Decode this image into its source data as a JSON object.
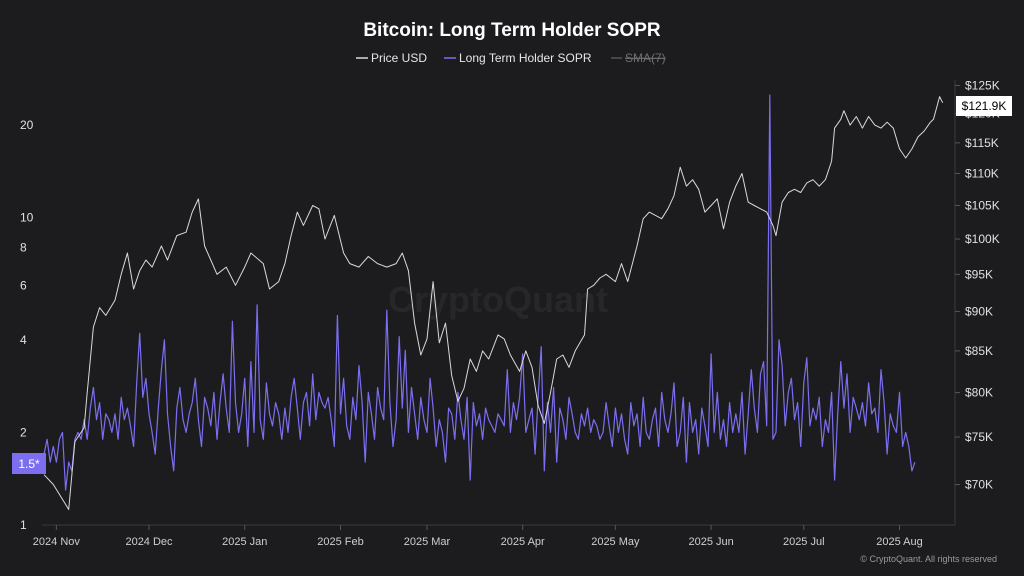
{
  "chart_data": {
    "type": "line",
    "title": "Bitcoin: Long Term Holder SOPR",
    "legend": [
      {
        "name": "Price USD",
        "color": "#d9d9d9",
        "disabled": false
      },
      {
        "name": "Long Term Holder SOPR",
        "color": "#7b6ff0",
        "disabled": false
      },
      {
        "name": "SMA(7)",
        "color": "#6b6b6b",
        "disabled": true
      }
    ],
    "legend_position": "top-center",
    "x_ticks": [
      "2024 Nov",
      "2024 Dec",
      "2025 Jan",
      "2025 Feb",
      "2025 Mar",
      "2025 Apr",
      "2025 May",
      "2025 Jun",
      "2025 Jul",
      "2025 Aug"
    ],
    "x_range": [
      "2024-10-28",
      "2025-08-18"
    ],
    "left_axis": {
      "scale": "log",
      "range": [
        1,
        28
      ],
      "ticks": [
        1,
        2,
        4,
        6,
        8,
        10,
        20
      ],
      "series": "Long Term Holder SOPR"
    },
    "right_axis": {
      "scale": "log",
      "range": [
        66000,
        126000
      ],
      "ticks": [
        "$70K",
        "$75K",
        "$80K",
        "$85K",
        "$90K",
        "$95K",
        "$100K",
        "$105K",
        "$110K",
        "$115K",
        "$120K",
        "$125K"
      ],
      "tick_values": [
        70000,
        75000,
        80000,
        85000,
        90000,
        95000,
        100000,
        105000,
        110000,
        115000,
        120000,
        125000
      ],
      "series": "Price USD"
    },
    "current_price_label": "$121.9K",
    "current_price_value": 121900,
    "current_sopr_label": "1.5*",
    "current_sopr_value": 1.5,
    "watermark": "CryptoQuant",
    "copyright": "© CryptoQuant. All rights reserved",
    "grid": false,
    "series": [
      {
        "name": "Price USD",
        "color": "#d9d9d9",
        "points": [
          [
            "2024-10-28",
            71000
          ],
          [
            "2024-10-31",
            70000
          ],
          [
            "2024-11-03",
            68500
          ],
          [
            "2024-11-05",
            67500
          ],
          [
            "2024-11-07",
            74500
          ],
          [
            "2024-11-10",
            76000
          ],
          [
            "2024-11-11",
            80000
          ],
          [
            "2024-11-13",
            88000
          ],
          [
            "2024-11-15",
            90500
          ],
          [
            "2024-11-17",
            89500
          ],
          [
            "2024-11-20",
            91500
          ],
          [
            "2024-11-22",
            95000
          ],
          [
            "2024-11-24",
            98000
          ],
          [
            "2024-11-26",
            93000
          ],
          [
            "2024-11-28",
            95500
          ],
          [
            "2024-11-30",
            97000
          ],
          [
            "2024-12-02",
            96000
          ],
          [
            "2024-12-05",
            99000
          ],
          [
            "2024-12-07",
            97000
          ],
          [
            "2024-12-10",
            100500
          ],
          [
            "2024-12-13",
            101000
          ],
          [
            "2024-12-15",
            104000
          ],
          [
            "2024-12-17",
            106000
          ],
          [
            "2024-12-19",
            99000
          ],
          [
            "2024-12-21",
            97000
          ],
          [
            "2024-12-23",
            95000
          ],
          [
            "2024-12-26",
            96000
          ],
          [
            "2024-12-29",
            93500
          ],
          [
            "2025-01-01",
            96000
          ],
          [
            "2025-01-03",
            98000
          ],
          [
            "2025-01-07",
            96500
          ],
          [
            "2025-01-09",
            93000
          ],
          [
            "2025-01-12",
            94000
          ],
          [
            "2025-01-14",
            96500
          ],
          [
            "2025-01-16",
            100500
          ],
          [
            "2025-01-18",
            104000
          ],
          [
            "2025-01-20",
            102000
          ],
          [
            "2025-01-23",
            105000
          ],
          [
            "2025-01-25",
            104500
          ],
          [
            "2025-01-27",
            100000
          ],
          [
            "2025-01-30",
            103500
          ],
          [
            "2025-02-02",
            98000
          ],
          [
            "2025-02-04",
            96500
          ],
          [
            "2025-02-07",
            96000
          ],
          [
            "2025-02-10",
            97500
          ],
          [
            "2025-02-13",
            96500
          ],
          [
            "2025-02-16",
            96000
          ],
          [
            "2025-02-19",
            96500
          ],
          [
            "2025-02-21",
            98000
          ],
          [
            "2025-02-23",
            95500
          ],
          [
            "2025-02-25",
            88500
          ],
          [
            "2025-02-27",
            84500
          ],
          [
            "2025-03-01",
            86500
          ],
          [
            "2025-03-03",
            94000
          ],
          [
            "2025-03-05",
            86000
          ],
          [
            "2025-03-07",
            88500
          ],
          [
            "2025-03-09",
            82000
          ],
          [
            "2025-03-11",
            79000
          ],
          [
            "2025-03-13",
            80500
          ],
          [
            "2025-03-15",
            84000
          ],
          [
            "2025-03-17",
            82500
          ],
          [
            "2025-03-19",
            85000
          ],
          [
            "2025-03-21",
            84000
          ],
          [
            "2025-03-24",
            87000
          ],
          [
            "2025-03-26",
            86500
          ],
          [
            "2025-03-28",
            84500
          ],
          [
            "2025-03-31",
            82500
          ],
          [
            "2025-04-02",
            85000
          ],
          [
            "2025-04-04",
            83000
          ],
          [
            "2025-04-06",
            78500
          ],
          [
            "2025-04-08",
            76500
          ],
          [
            "2025-04-10",
            80000
          ],
          [
            "2025-04-12",
            84000
          ],
          [
            "2025-04-14",
            84500
          ],
          [
            "2025-04-16",
            83000
          ],
          [
            "2025-04-18",
            85000
          ],
          [
            "2025-04-21",
            87000
          ],
          [
            "2025-04-22",
            93000
          ],
          [
            "2025-04-24",
            93500
          ],
          [
            "2025-04-26",
            94500
          ],
          [
            "2025-04-28",
            95000
          ],
          [
            "2025-05-01",
            94000
          ],
          [
            "2025-05-03",
            96500
          ],
          [
            "2025-05-05",
            94000
          ],
          [
            "2025-05-08",
            99000
          ],
          [
            "2025-05-10",
            103000
          ],
          [
            "2025-05-12",
            104000
          ],
          [
            "2025-05-14",
            103500
          ],
          [
            "2025-05-16",
            103000
          ],
          [
            "2025-05-18",
            104500
          ],
          [
            "2025-05-20",
            106500
          ],
          [
            "2025-05-22",
            111000
          ],
          [
            "2025-05-24",
            108000
          ],
          [
            "2025-05-26",
            109000
          ],
          [
            "2025-05-28",
            107500
          ],
          [
            "2025-05-30",
            104000
          ],
          [
            "2025-06-01",
            105000
          ],
          [
            "2025-06-03",
            106000
          ],
          [
            "2025-06-05",
            101500
          ],
          [
            "2025-06-07",
            105500
          ],
          [
            "2025-06-09",
            108000
          ],
          [
            "2025-06-11",
            110000
          ],
          [
            "2025-06-13",
            105500
          ],
          [
            "2025-06-15",
            105000
          ],
          [
            "2025-06-17",
            104500
          ],
          [
            "2025-06-19",
            104000
          ],
          [
            "2025-06-21",
            102000
          ],
          [
            "2025-06-22",
            100500
          ],
          [
            "2025-06-24",
            105500
          ],
          [
            "2025-06-26",
            107000
          ],
          [
            "2025-06-28",
            107500
          ],
          [
            "2025-06-30",
            107000
          ],
          [
            "2025-07-02",
            108500
          ],
          [
            "2025-07-04",
            109000
          ],
          [
            "2025-07-06",
            108000
          ],
          [
            "2025-07-08",
            109000
          ],
          [
            "2025-07-10",
            112000
          ],
          [
            "2025-07-11",
            117500
          ],
          [
            "2025-07-13",
            119000
          ],
          [
            "2025-07-14",
            120500
          ],
          [
            "2025-07-16",
            118000
          ],
          [
            "2025-07-18",
            119500
          ],
          [
            "2025-07-20",
            117500
          ],
          [
            "2025-07-22",
            119500
          ],
          [
            "2025-07-24",
            118000
          ],
          [
            "2025-07-26",
            117500
          ],
          [
            "2025-07-28",
            118500
          ],
          [
            "2025-07-30",
            117500
          ],
          [
            "2025-08-01",
            114000
          ],
          [
            "2025-08-03",
            112500
          ],
          [
            "2025-08-05",
            114000
          ],
          [
            "2025-08-07",
            116000
          ],
          [
            "2025-08-09",
            117000
          ],
          [
            "2025-08-11",
            118500
          ],
          [
            "2025-08-12",
            119000
          ],
          [
            "2025-08-14",
            123000
          ],
          [
            "2025-08-15",
            121900
          ]
        ]
      },
      {
        "name": "Long Term Holder SOPR",
        "color": "#7b6ff0",
        "values_start": "2024-10-28",
        "values_step_days": 1,
        "values": [
          1.7,
          1.9,
          1.6,
          1.8,
          1.6,
          1.9,
          2.0,
          1.3,
          1.6,
          1.5,
          1.9,
          2.0,
          1.9,
          2.2,
          1.9,
          2.4,
          2.8,
          2.2,
          2.5,
          1.9,
          2.3,
          2.2,
          2.0,
          2.3,
          1.9,
          2.6,
          2.2,
          2.4,
          2.1,
          1.8,
          2.9,
          4.2,
          2.6,
          3.0,
          2.3,
          2.0,
          1.7,
          2.4,
          3.2,
          4.0,
          2.3,
          1.8,
          1.5,
          2.4,
          2.8,
          2.2,
          2.0,
          2.3,
          2.5,
          3.0,
          2.2,
          1.8,
          2.6,
          2.4,
          2.1,
          2.7,
          1.9,
          2.5,
          3.1,
          2.4,
          2.0,
          4.6,
          2.5,
          2.0,
          2.3,
          3.0,
          1.8,
          3.4,
          2.0,
          5.2,
          2.2,
          1.9,
          2.9,
          2.3,
          2.1,
          2.5,
          2.3,
          1.9,
          2.4,
          2.0,
          2.6,
          3.0,
          2.4,
          1.9,
          2.5,
          2.7,
          2.1,
          3.1,
          2.2,
          2.7,
          2.5,
          2.4,
          2.6,
          2.2,
          1.8,
          4.8,
          2.3,
          3.0,
          2.1,
          1.9,
          2.6,
          2.2,
          3.3,
          2.5,
          1.6,
          2.7,
          2.3,
          1.9,
          2.8,
          2.4,
          2.2,
          5.0,
          2.5,
          1.8,
          2.2,
          4.1,
          2.4,
          3.7,
          2.0,
          2.8,
          2.3,
          1.9,
          2.6,
          2.2,
          2.0,
          3.0,
          2.4,
          1.8,
          2.2,
          2.0,
          1.6,
          2.4,
          2.3,
          1.9,
          2.7,
          2.2,
          1.9,
          2.6,
          1.4,
          2.5,
          2.1,
          2.3,
          1.9,
          2.4,
          2.2,
          2.1,
          2.0,
          2.3,
          2.2,
          2.1,
          3.2,
          2.0,
          2.5,
          2.2,
          2.6,
          3.6,
          2.0,
          2.2,
          2.4,
          1.7,
          2.6,
          3.8,
          1.5,
          2.5,
          2.0,
          2.8,
          1.6,
          2.4,
          2.2,
          1.9,
          2.6,
          2.3,
          2.0,
          1.9,
          2.3,
          2.1,
          2.4,
          2.0,
          2.2,
          2.1,
          1.9,
          2.0,
          2.5,
          2.1,
          1.8,
          2.4,
          2.0,
          2.3,
          1.9,
          1.7,
          2.5,
          2.1,
          2.3,
          1.8,
          2.6,
          2.0,
          1.9,
          2.2,
          2.4,
          1.8,
          2.7,
          2.2,
          2.0,
          2.3,
          2.9,
          1.8,
          2.0,
          2.6,
          1.6,
          2.5,
          2.0,
          2.2,
          1.7,
          2.4,
          2.1,
          1.8,
          3.6,
          2.0,
          2.7,
          1.9,
          2.2,
          1.8,
          2.5,
          2.0,
          2.3,
          2.0,
          2.7,
          1.7,
          2.3,
          3.2,
          2.4,
          2.0,
          3.1,
          3.4,
          2.1,
          25.0,
          1.9,
          2.0,
          4.0,
          3.3,
          2.1,
          2.7,
          3.0,
          2.2,
          2.5,
          1.8,
          2.9,
          3.5,
          2.1,
          2.4,
          2.2,
          2.6,
          1.8,
          2.2,
          2.0,
          2.7,
          1.4,
          2.3,
          3.4,
          2.4,
          3.1,
          2.0,
          2.6,
          2.4,
          2.2,
          2.5,
          2.1,
          2.9,
          2.3,
          2.4,
          2.0,
          3.2,
          2.5,
          1.7,
          2.3,
          2.1,
          2.0,
          2.7,
          1.8,
          2.0,
          1.8,
          1.5,
          1.6
        ]
      }
    ]
  }
}
